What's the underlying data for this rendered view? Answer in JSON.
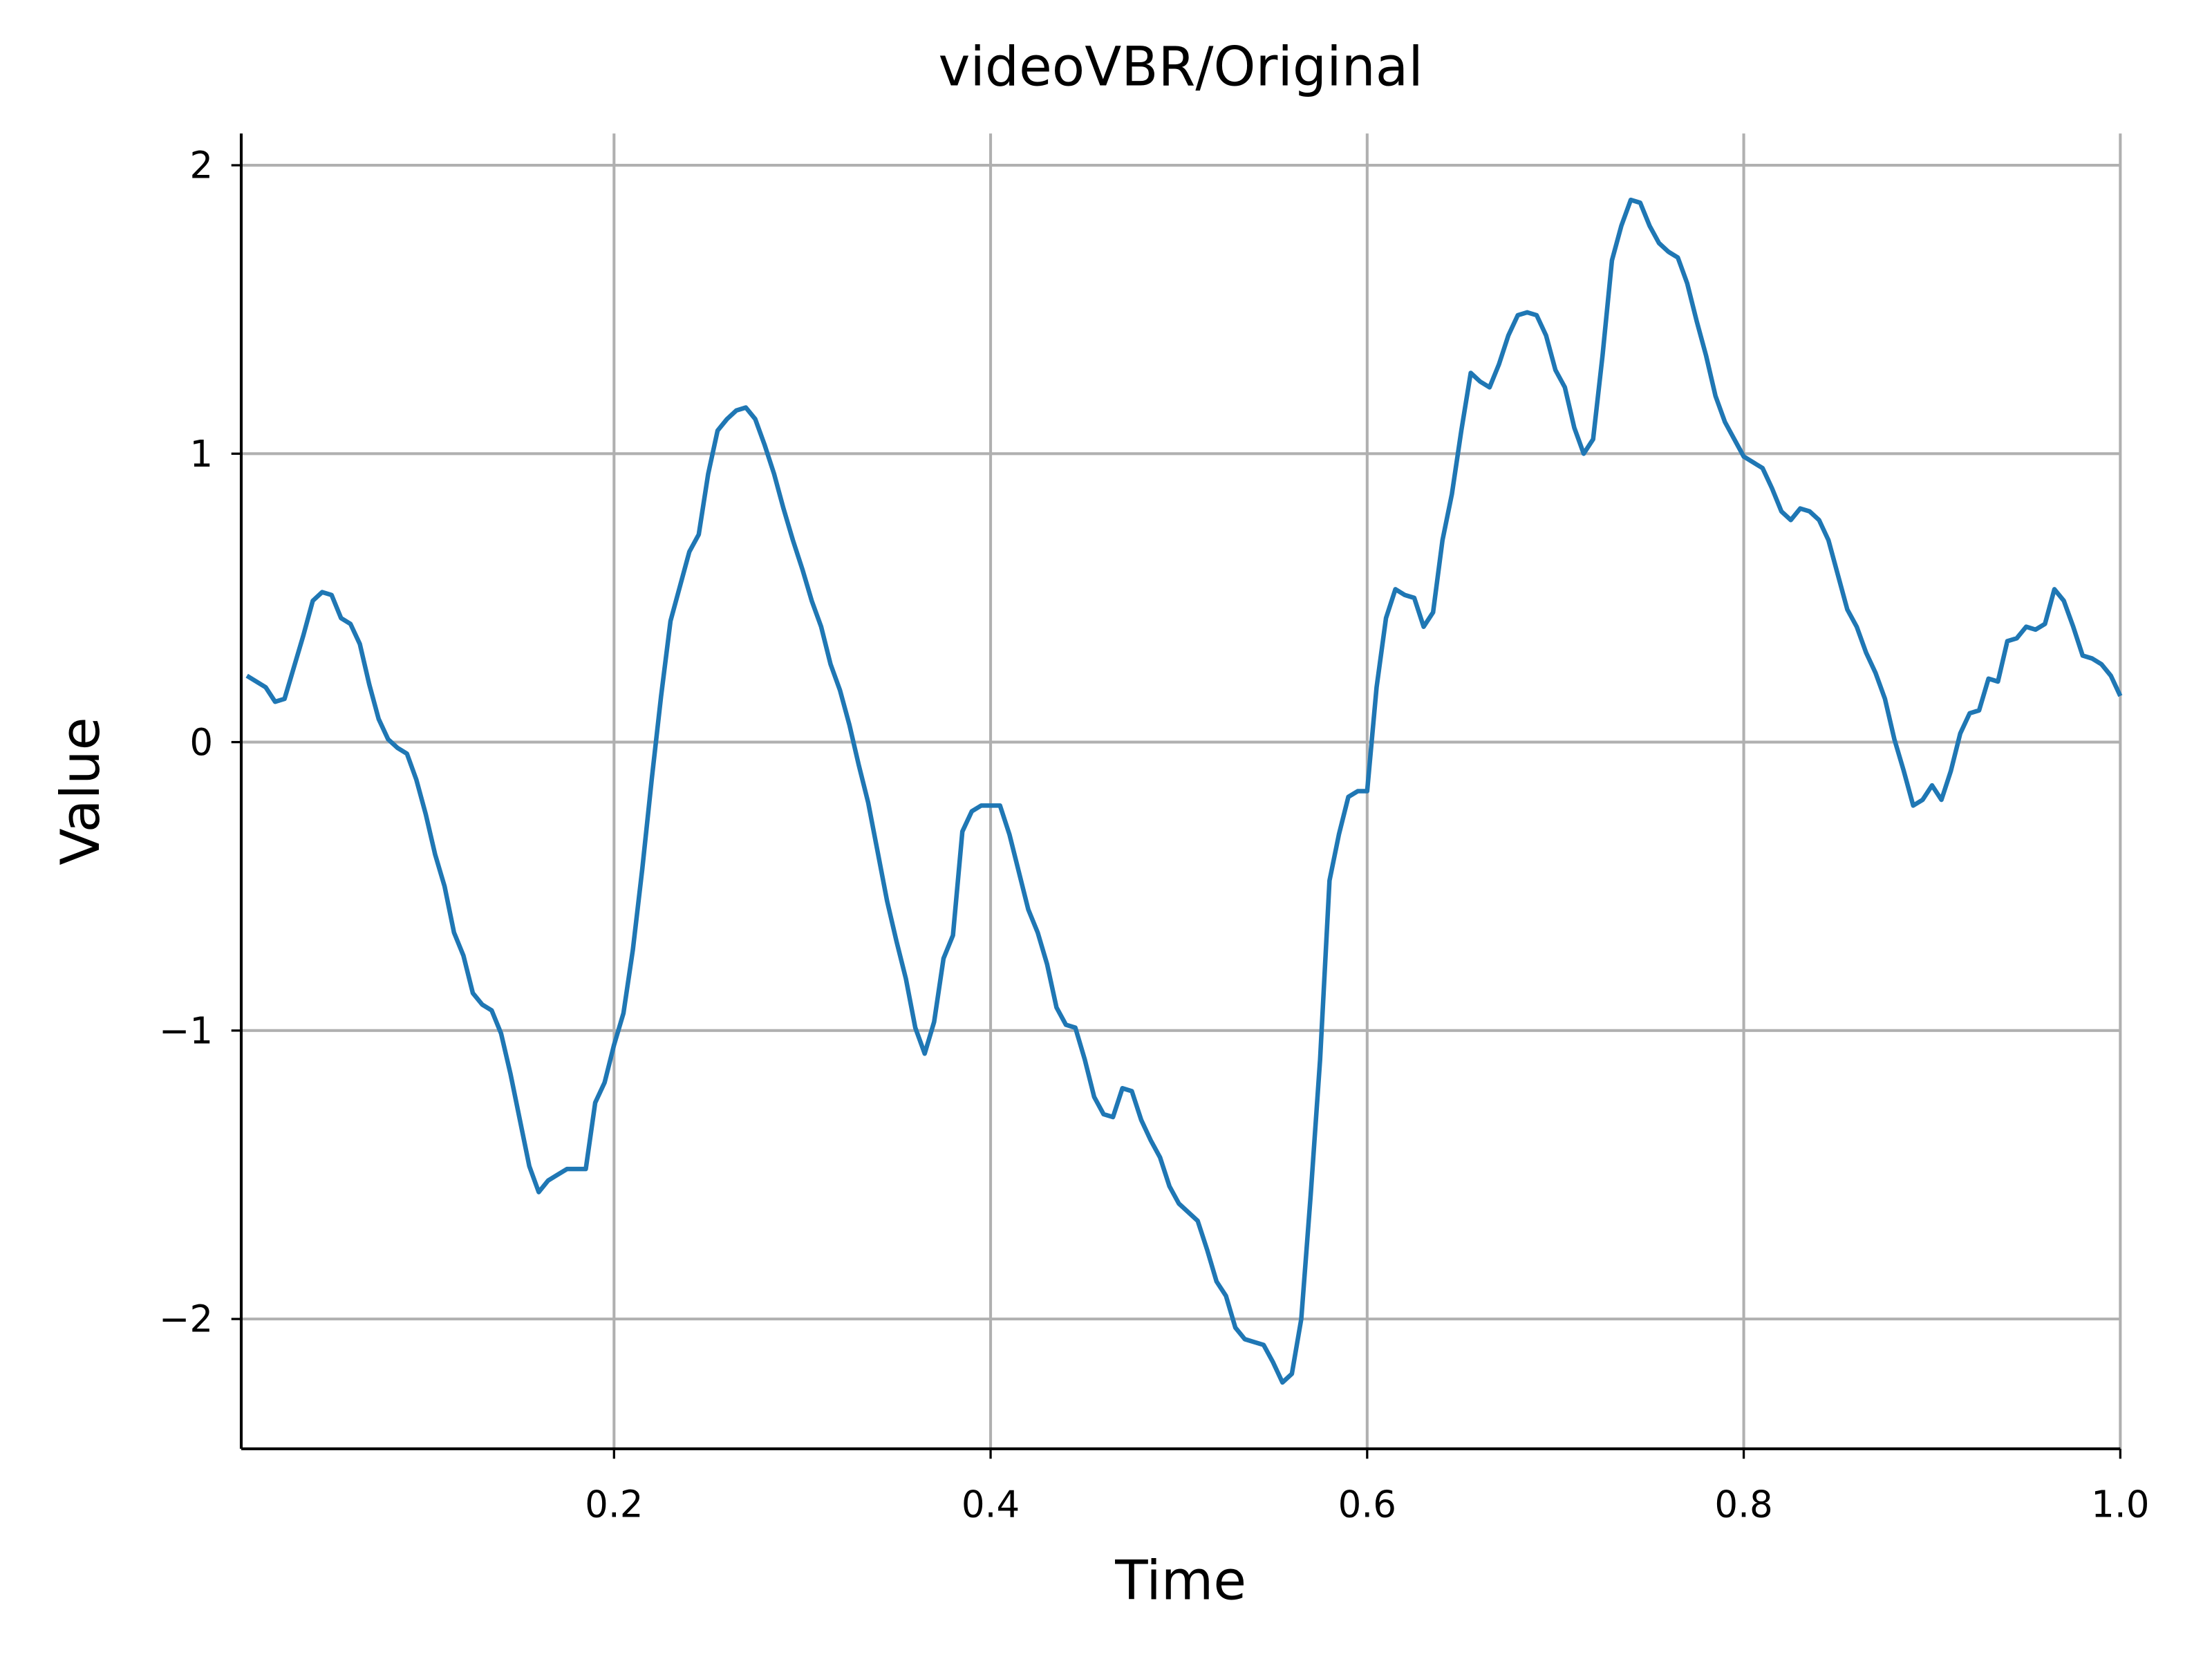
{
  "chart_data": {
    "type": "line",
    "title": "videoVBR/Original",
    "x_label": "Time",
    "y_label": "Value",
    "x": [
      0.005,
      0.01,
      0.015,
      0.02,
      0.025,
      0.03,
      0.035,
      0.04,
      0.045,
      0.05,
      0.055,
      0.06,
      0.065,
      0.07,
      0.075,
      0.08,
      0.085,
      0.09,
      0.095,
      0.1,
      0.105,
      0.11,
      0.115,
      0.12,
      0.125,
      0.13,
      0.135,
      0.14,
      0.145,
      0.15,
      0.155,
      0.16,
      0.165,
      0.17,
      0.175,
      0.18,
      0.185,
      0.19,
      0.195,
      0.2,
      0.205,
      0.21,
      0.215,
      0.22,
      0.225,
      0.23,
      0.235,
      0.24,
      0.245,
      0.25,
      0.255,
      0.26,
      0.265,
      0.27,
      0.275,
      0.28,
      0.285,
      0.29,
      0.295,
      0.3,
      0.305,
      0.31,
      0.315,
      0.32,
      0.325,
      0.33,
      0.335,
      0.34,
      0.345,
      0.35,
      0.355,
      0.36,
      0.365,
      0.37,
      0.375,
      0.38,
      0.385,
      0.39,
      0.395,
      0.4,
      0.405,
      0.41,
      0.415,
      0.42,
      0.425,
      0.43,
      0.435,
      0.44,
      0.445,
      0.45,
      0.455,
      0.46,
      0.465,
      0.47,
      0.475,
      0.48,
      0.485,
      0.49,
      0.495,
      0.5,
      0.505,
      0.51,
      0.515,
      0.52,
      0.525,
      0.53,
      0.535,
      0.54,
      0.545,
      0.55,
      0.555,
      0.56,
      0.565,
      0.57,
      0.575,
      0.58,
      0.585,
      0.59,
      0.595,
      0.6,
      0.605,
      0.61,
      0.615,
      0.62,
      0.625,
      0.63,
      0.635,
      0.64,
      0.645,
      0.65,
      0.655,
      0.66,
      0.665,
      0.67,
      0.675,
      0.68,
      0.685,
      0.69,
      0.695,
      0.7,
      0.705,
      0.71,
      0.715,
      0.72,
      0.725,
      0.73,
      0.735,
      0.74,
      0.745,
      0.75,
      0.755,
      0.76,
      0.765,
      0.77,
      0.775,
      0.78,
      0.785,
      0.79,
      0.795,
      0.8,
      0.805,
      0.81,
      0.815,
      0.82,
      0.825,
      0.83,
      0.835,
      0.84,
      0.845,
      0.85,
      0.855,
      0.86,
      0.865,
      0.87,
      0.875,
      0.88,
      0.885,
      0.89,
      0.895,
      0.9,
      0.905,
      0.91,
      0.915,
      0.92,
      0.925,
      0.93,
      0.935,
      0.94,
      0.945,
      0.95,
      0.955,
      0.96,
      0.965,
      0.97,
      0.975,
      0.98,
      0.985,
      0.99,
      0.995,
      1.0
    ],
    "series": [
      {
        "color": "#1f77b4",
        "values": [
          0.23,
          0.21,
          0.19,
          0.14,
          0.15,
          0.26,
          0.37,
          0.49,
          0.52,
          0.51,
          0.43,
          0.41,
          0.34,
          0.2,
          0.08,
          0.01,
          -0.02,
          -0.04,
          -0.13,
          -0.25,
          -0.39,
          -0.5,
          -0.66,
          -0.74,
          -0.87,
          -0.91,
          -0.93,
          -1.01,
          -1.15,
          -1.31,
          -1.47,
          -1.56,
          -1.52,
          -1.5,
          -1.48,
          -1.48,
          -1.48,
          -1.25,
          -1.18,
          -1.05,
          -0.94,
          -0.72,
          -0.44,
          -0.13,
          0.16,
          0.42,
          0.54,
          0.66,
          0.72,
          0.93,
          1.08,
          1.12,
          1.15,
          1.16,
          1.12,
          1.03,
          0.93,
          0.81,
          0.7,
          0.6,
          0.49,
          0.4,
          0.27,
          0.18,
          0.06,
          -0.08,
          -0.21,
          -0.38,
          -0.55,
          -0.69,
          -0.82,
          -0.99,
          -1.08,
          -0.97,
          -0.75,
          -0.67,
          -0.31,
          -0.24,
          -0.22,
          -0.22,
          -0.22,
          -0.32,
          -0.45,
          -0.58,
          -0.66,
          -0.77,
          -0.92,
          -0.98,
          -0.99,
          -1.1,
          -1.23,
          -1.29,
          -1.3,
          -1.2,
          -1.21,
          -1.31,
          -1.38,
          -1.44,
          -1.54,
          -1.6,
          -1.63,
          -1.66,
          -1.76,
          -1.87,
          -1.92,
          -2.03,
          -2.07,
          -2.08,
          -2.09,
          -2.15,
          -2.22,
          -2.19,
          -2.0,
          -1.57,
          -1.1,
          -0.48,
          -0.32,
          -0.19,
          -0.17,
          -0.17,
          0.19,
          0.43,
          0.53,
          0.51,
          0.5,
          0.4,
          0.45,
          0.7,
          0.86,
          1.08,
          1.28,
          1.25,
          1.23,
          1.31,
          1.41,
          1.48,
          1.49,
          1.48,
          1.41,
          1.29,
          1.23,
          1.09,
          1.0,
          1.05,
          1.34,
          1.67,
          1.79,
          1.88,
          1.87,
          1.79,
          1.73,
          1.7,
          1.68,
          1.59,
          1.46,
          1.34,
          1.2,
          1.11,
          1.05,
          0.99,
          0.97,
          0.95,
          0.88,
          0.8,
          0.77,
          0.81,
          0.8,
          0.77,
          0.7,
          0.58,
          0.46,
          0.4,
          0.31,
          0.24,
          0.15,
          0.01,
          -0.1,
          -0.22,
          -0.2,
          -0.15,
          -0.2,
          -0.1,
          0.03,
          0.1,
          0.11,
          0.22,
          0.21,
          0.35,
          0.36,
          0.4,
          0.39,
          0.41,
          0.53,
          0.49,
          0.4,
          0.3,
          0.29,
          0.27,
          0.23,
          0.16
        ]
      }
    ],
    "xlim": [
      0.002,
      1.0
    ],
    "ylim": [
      -2.45,
      2.11
    ],
    "xticks": [
      0.2,
      0.4,
      0.6,
      0.8,
      {
        "value": 1,
        "label": "1.0"
      }
    ],
    "yticks": [
      {
        "value": -2,
        "label": "−2"
      },
      {
        "value": -1,
        "label": "−1"
      },
      0,
      1,
      2
    ],
    "grid": true
  }
}
